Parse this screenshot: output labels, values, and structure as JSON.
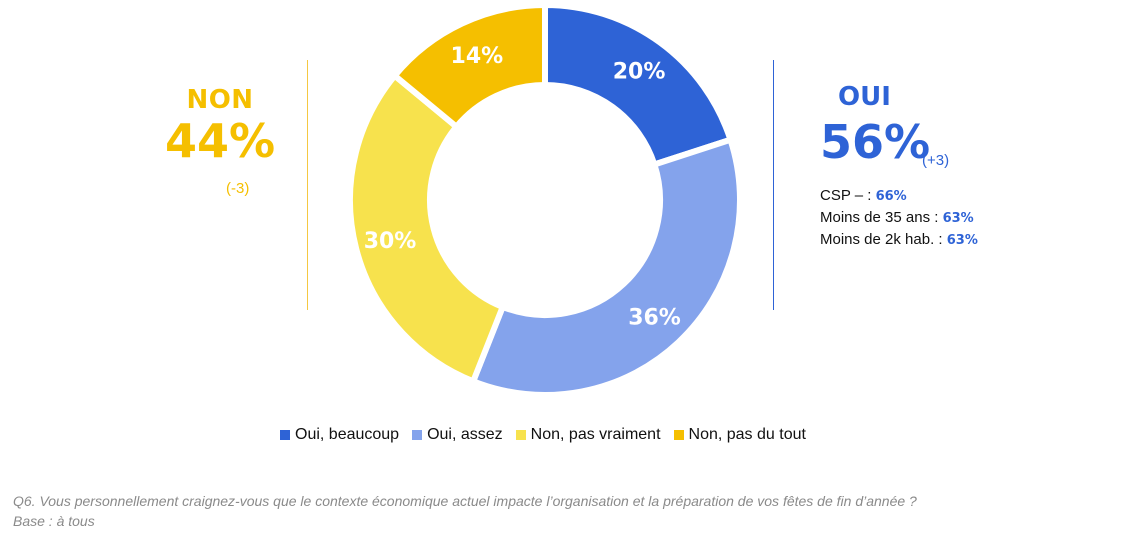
{
  "non": {
    "title": "NON",
    "value": "44%",
    "delta": "(-3)",
    "color": "#F5BF00"
  },
  "oui": {
    "title": "OUI",
    "value": "56%",
    "delta": "(+3)",
    "color": "#2E63D6",
    "details": [
      {
        "label": "CSP – : ",
        "value": "66%"
      },
      {
        "label": "Moins de 35 ans : ",
        "value": "63%"
      },
      {
        "label": "Moins de 2k hab. : ",
        "value": "63%"
      }
    ]
  },
  "chart_data": {
    "type": "pie",
    "donut": true,
    "categories": [
      "Oui, beaucoup",
      "Oui, assez",
      "Non, pas vraiment",
      "Non, pas du tout"
    ],
    "values": [
      20,
      36,
      30,
      14
    ],
    "labels": [
      "20%",
      "36%",
      "30%",
      "14%"
    ],
    "colors": [
      "#2E63D6",
      "#84A3EC",
      "#F7E24D",
      "#F5BF00"
    ],
    "legend_position": "bottom"
  },
  "legend": [
    {
      "label": "Oui, beaucoup",
      "color": "#2E63D6"
    },
    {
      "label": "Oui, assez",
      "color": "#84A3EC"
    },
    {
      "label": "Non, pas vraiment",
      "color": "#F7E24D"
    },
    {
      "label": "Non, pas du tout",
      "color": "#F5BF00"
    }
  ],
  "footnote": {
    "question": "Q6. Vous personnellement craignez-vous que le contexte économique actuel impacte l’organisation et la préparation de vos fêtes de fin d’année ?",
    "base": "Base : à tous"
  }
}
